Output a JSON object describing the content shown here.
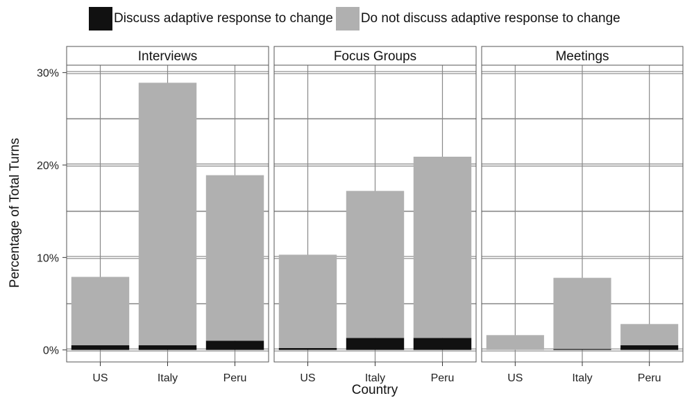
{
  "chart_data": {
    "type": "bar",
    "stacked": true,
    "facets": [
      "Interviews",
      "Focus Groups",
      "Meetings"
    ],
    "categories": [
      "US",
      "Italy",
      "Peru"
    ],
    "series": [
      {
        "name": "Discuss adaptive response to change",
        "color": "#111111",
        "values": [
          [
            0.5,
            0.5,
            1.0
          ],
          [
            0.2,
            1.3,
            1.3
          ],
          [
            0.0,
            0.1,
            0.5
          ]
        ]
      },
      {
        "name": "Do not discuss adaptive response to change",
        "color": "#b0b0b0",
        "values": [
          [
            7.4,
            28.4,
            17.9
          ],
          [
            10.1,
            15.9,
            19.6
          ],
          [
            1.6,
            7.7,
            2.3
          ]
        ]
      }
    ],
    "ylim": [
      -1.3,
      30.8
    ],
    "yticks": [
      0,
      10,
      20,
      30
    ],
    "ytick_labels": [
      "0%",
      "10%",
      "20%",
      "30%"
    ],
    "xlabel": "Country",
    "ylabel": "Percentage of Total Turns",
    "legend_position": "top",
    "grid": true
  }
}
